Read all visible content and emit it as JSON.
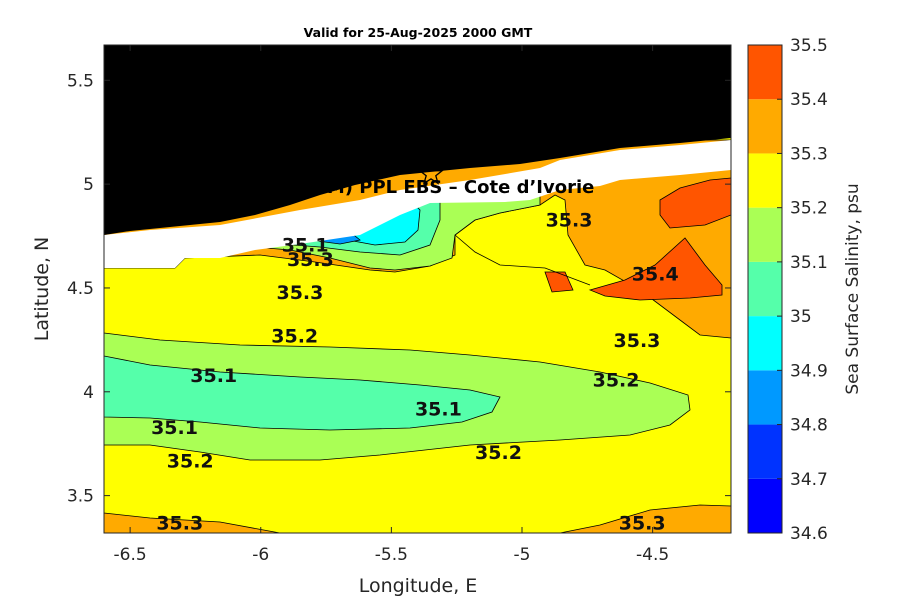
{
  "title": "Valid for 25-Aug-2025 2000 GMT",
  "site_label": "A (ONHYM) PPL EBS  – Cote d’Ivorie",
  "marker_icon": "star-icon",
  "chart_data": {
    "type": "contour",
    "xlabel": "Longitude, E",
    "ylabel": "Latitude, N",
    "xlim": [
      -6.6,
      -4.2
    ],
    "ylim": [
      3.32,
      5.67
    ],
    "xticks": [
      -6.5,
      -6,
      -5.5,
      -5,
      -4.5
    ],
    "xtick_labels": [
      "-6.5",
      "-6",
      "-5.5",
      "-5",
      "-4.5"
    ],
    "yticks": [
      3.5,
      4,
      4.5,
      5,
      5.5
    ],
    "ytick_labels": [
      "3.5",
      "4",
      "4.5",
      "5",
      "5.5"
    ],
    "grid": false,
    "land_color": "#000000",
    "colorbar": {
      "label": "Sea Surface Salinity, psu",
      "levels": [
        34.6,
        34.7,
        34.8,
        34.9,
        35,
        35.1,
        35.2,
        35.3,
        35.4,
        35.5
      ],
      "tick_labels": [
        "34.6",
        "34.7",
        "34.8",
        "34.9",
        "35",
        "35.1",
        "35.2",
        "35.3",
        "35.4",
        "35.5"
      ],
      "colors": [
        "#0000ff",
        "#0033ff",
        "#0099ff",
        "#00ffff",
        "#55ffaa",
        "#aaff55",
        "#ffff00",
        "#ffaa00",
        "#ff5500"
      ]
    },
    "contour_labels": [
      {
        "text": "35.1",
        "lon": -5.83,
        "lat": 4.71
      },
      {
        "text": "35.3",
        "lon": -5.81,
        "lat": 4.64
      },
      {
        "text": "35.3",
        "lon": -5.85,
        "lat": 4.48
      },
      {
        "text": "35.2",
        "lon": -5.87,
        "lat": 4.27
      },
      {
        "text": "35.1",
        "lon": -6.18,
        "lat": 4.08
      },
      {
        "text": "35.1",
        "lon": -6.33,
        "lat": 3.83
      },
      {
        "text": "35.1",
        "lon": -5.32,
        "lat": 3.92
      },
      {
        "text": "35.2",
        "lon": -6.27,
        "lat": 3.67
      },
      {
        "text": "35.2",
        "lon": -5.09,
        "lat": 3.71
      },
      {
        "text": "35.3",
        "lon": -6.31,
        "lat": 3.37
      },
      {
        "text": "35.3",
        "lon": -4.54,
        "lat": 3.37
      },
      {
        "text": "35.2",
        "lon": -4.64,
        "lat": 4.06
      },
      {
        "text": "35.3",
        "lon": -4.56,
        "lat": 4.25
      },
      {
        "text": "35.3",
        "lon": -4.82,
        "lat": 4.83
      },
      {
        "text": "35.4",
        "lon": -4.49,
        "lat": 4.57
      }
    ],
    "marker": {
      "lon": -5.34,
      "lat": 5.05
    }
  }
}
